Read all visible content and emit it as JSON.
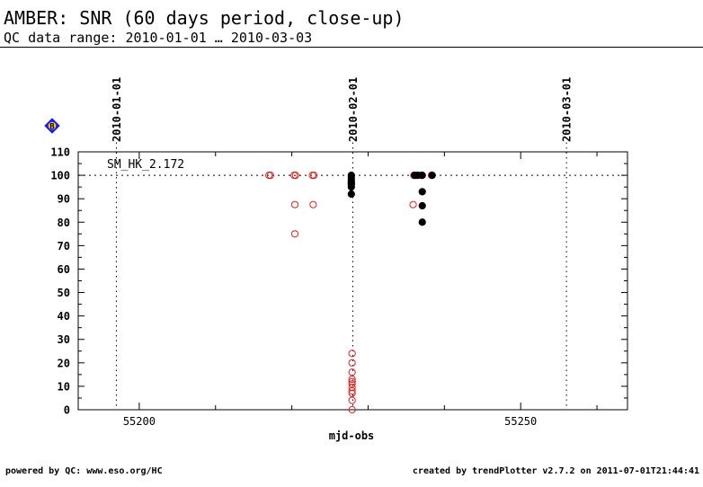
{
  "header": {
    "title": "AMBER: SNR (60 days period, close-up)",
    "subtitle": "QC data range: 2010-01-01 … 2010-03-03"
  },
  "footer": {
    "left": "powered by QC: www.eso.org/HC",
    "right": "created by trendPlotter v2.7.2 on 2011-07-01T21:44:41"
  },
  "chart_data": {
    "type": "scatter",
    "title": "",
    "xlabel": "mjd-obs",
    "ylabel": "",
    "xlim": [
      55192,
      55264
    ],
    "ylim": [
      0,
      110
    ],
    "x_major_ticks": [
      55200,
      55250
    ],
    "x_minor_ticks": [
      55210,
      55220,
      55230,
      55240,
      55260
    ],
    "y_ticks": [
      0,
      10,
      20,
      30,
      40,
      50,
      60,
      70,
      80,
      90,
      100,
      110
    ],
    "grid": false,
    "reference_line": {
      "y": 100,
      "style": "dotted"
    },
    "date_markers": [
      {
        "x": 55197,
        "label": "2010-01-01"
      },
      {
        "x": 55228,
        "label": "2010-02-01"
      },
      {
        "x": 55256,
        "label": "2010-03-01"
      }
    ],
    "annotation": "SM_HK_2.172",
    "legend_marker": {
      "label": "B",
      "color": "#1a1aff",
      "fill": "#ffd21a"
    },
    "series": [
      {
        "marker": "open-circle",
        "color": "#dd2222",
        "points": [
          [
            55217.0,
            100
          ],
          [
            55217.2,
            100
          ],
          [
            55220.3,
            100
          ],
          [
            55220.5,
            100
          ],
          [
            55220.4,
            87.5
          ],
          [
            55220.4,
            75
          ],
          [
            55222.7,
            100
          ],
          [
            55222.9,
            100
          ],
          [
            55222.8,
            87.5
          ],
          [
            55227.9,
            24
          ],
          [
            55227.9,
            20
          ],
          [
            55227.9,
            16
          ],
          [
            55227.9,
            13
          ],
          [
            55227.9,
            12
          ],
          [
            55227.9,
            11
          ],
          [
            55227.9,
            9.5
          ],
          [
            55227.9,
            8
          ],
          [
            55227.9,
            7
          ],
          [
            55227.9,
            4
          ],
          [
            55227.9,
            0
          ],
          [
            55236.0,
            100
          ],
          [
            55236.5,
            100
          ],
          [
            55235.9,
            87.5
          ],
          [
            55238.3,
            100
          ]
        ]
      },
      {
        "marker": "filled-circle",
        "color": "#000000",
        "points": [
          [
            55227.8,
            100
          ],
          [
            55227.8,
            99
          ],
          [
            55227.8,
            98
          ],
          [
            55227.8,
            97
          ],
          [
            55227.8,
            96.5
          ],
          [
            55227.8,
            96
          ],
          [
            55227.8,
            95
          ],
          [
            55227.8,
            92
          ],
          [
            55236.1,
            100
          ],
          [
            55236.5,
            100
          ],
          [
            55237.0,
            100
          ],
          [
            55237.1,
            100
          ],
          [
            55237.1,
            93
          ],
          [
            55237.1,
            87
          ],
          [
            55237.1,
            80
          ],
          [
            55238.4,
            100
          ]
        ]
      }
    ]
  }
}
